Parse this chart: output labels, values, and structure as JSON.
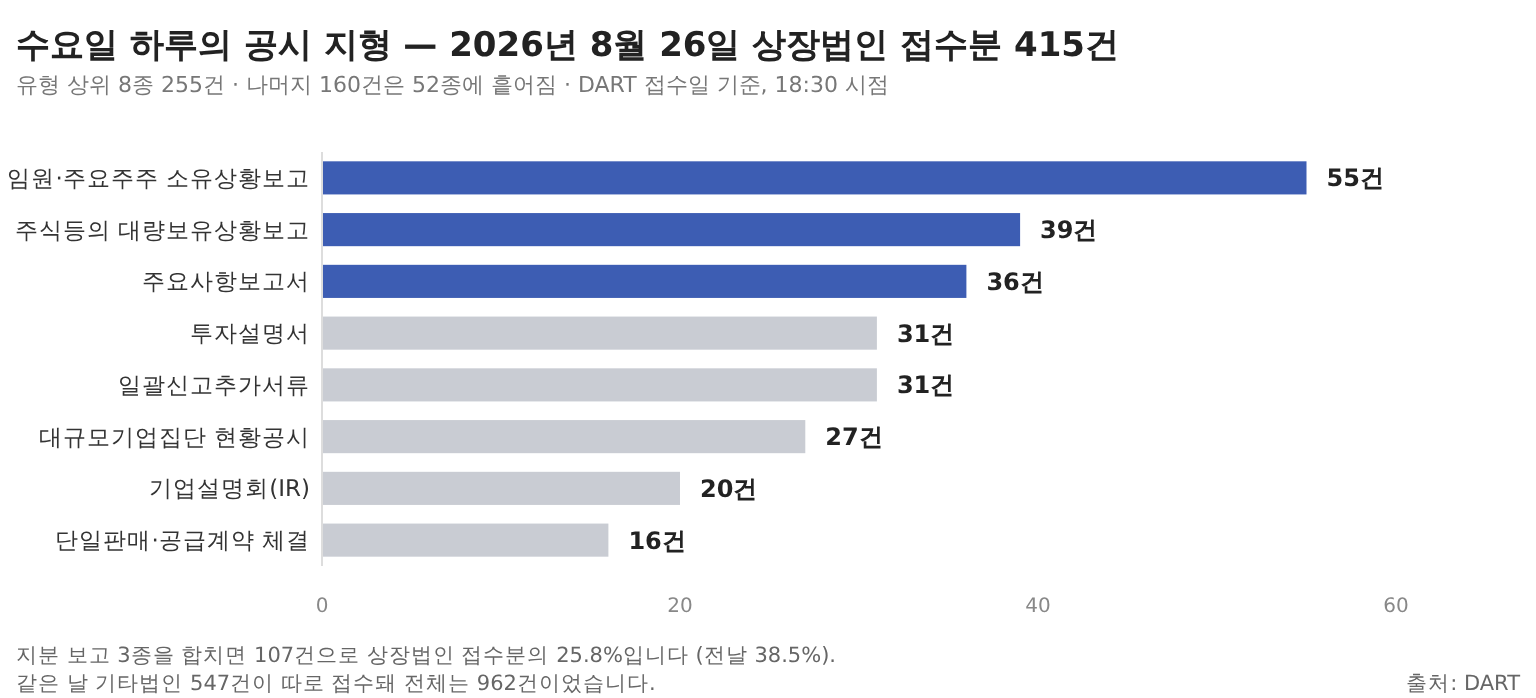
{
  "chart_data": {
    "type": "bar",
    "orientation": "horizontal",
    "title": "수요일 하루의 공시 지형 — 2026년 8월 26일 상장법인 접수분 415건",
    "subtitle": "유형 상위 8종 255건 · 나머지 160건은 52종에 흩어짐 · DART 접수일 기준, 18:30 시점",
    "categories": [
      "임원·주요주주 소유상황보고",
      "주식등의 대량보유상황보고",
      "주요사항보고서",
      "투자설명서",
      "일괄신고추가서류",
      "대규모기업집단 현황공시",
      "기업설명회(IR)",
      "단일판매·공급계약 체결"
    ],
    "values": [
      55,
      39,
      36,
      31,
      31,
      27,
      20,
      16
    ],
    "colors": [
      "#3d5db3",
      "#3d5db3",
      "#3d5db3",
      "#c9ccd3",
      "#c9ccd3",
      "#c9ccd3",
      "#c9ccd3",
      "#c9ccd3"
    ],
    "value_labels": [
      "55건",
      "39건",
      "36건",
      "31건",
      "31건",
      "27건",
      "20건",
      "16건"
    ],
    "xlim": [
      0,
      60
    ],
    "xticks": [
      0,
      20,
      40,
      60
    ],
    "annotations": [
      "지분 보고 3종을 합치면 107건으로 상장법인 접수분의 25.8%입니다 (전날 38.5%).",
      "같은 날 기타법인 547건이 따로 접수돼 전체는 962건이었습니다.",
      "출처: DART"
    ]
  }
}
